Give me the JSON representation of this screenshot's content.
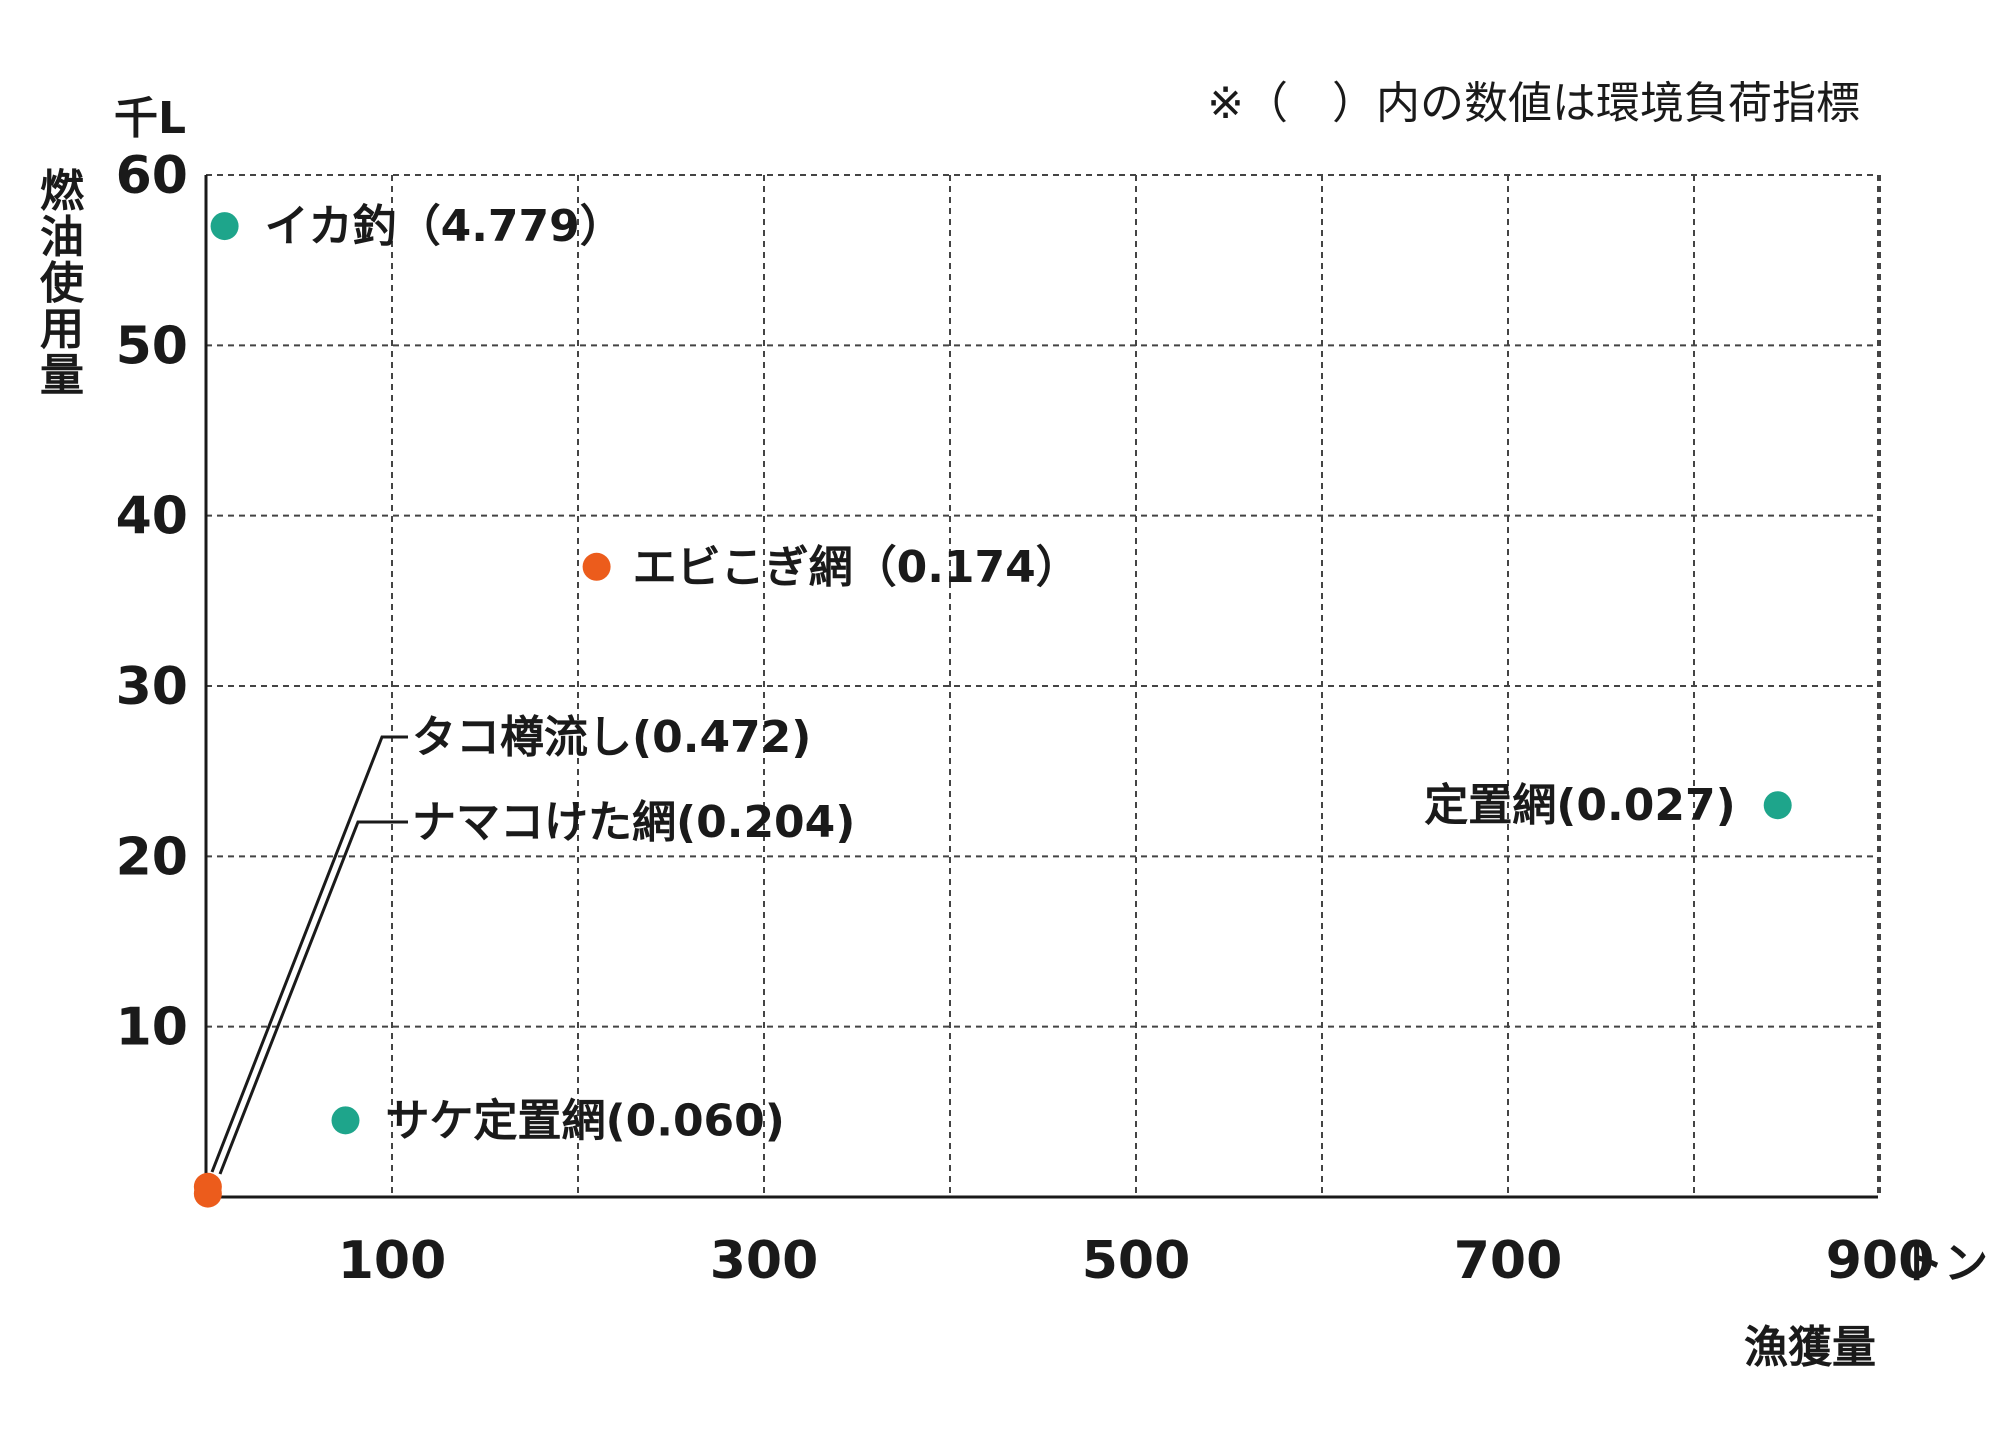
{
  "chart_data": {
    "type": "scatter",
    "xlabel": "漁獲量",
    "xunit": "トン",
    "ylabel": "燃油使用量",
    "yunit": "千L",
    "note": "※（　）内の数値は環境負荷指標",
    "xlim": [
      0,
      900
    ],
    "ylim": [
      0,
      60
    ],
    "x_ticks": [
      100,
      300,
      500,
      700,
      900
    ],
    "y_ticks": [
      10,
      20,
      30,
      40,
      50,
      60
    ],
    "grid": true,
    "colors": {
      "teal": "#1ea58b",
      "orange": "#ec5c1c"
    },
    "points": [
      {
        "label": "イカ釣（4.779）",
        "x": 10,
        "y": 57,
        "color": "#1ea58b"
      },
      {
        "label": "エビこぎ網（0.174）",
        "x": 210,
        "y": 37,
        "color": "#ec5c1c"
      },
      {
        "label": "定置網(0.027)",
        "x": 845,
        "y": 23,
        "color": "#1ea58b"
      },
      {
        "label": "サケ定置網(0.060)",
        "x": 75,
        "y": 4.5,
        "color": "#1ea58b"
      },
      {
        "label": "タコ樽流し(0.472)",
        "x": 1,
        "y": 0.6,
        "color": "#ec5c1c"
      },
      {
        "label": "ナマコけた網(0.204)",
        "x": 1,
        "y": 0.2,
        "color": "#ec5c1c"
      }
    ]
  }
}
